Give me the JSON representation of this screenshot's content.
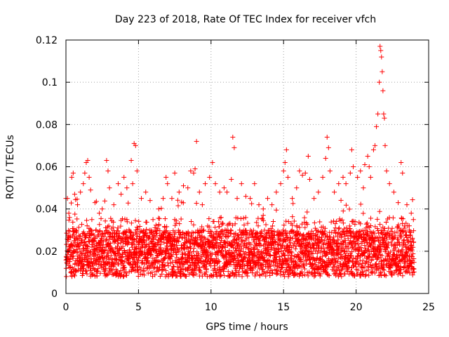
{
  "chart_data": {
    "type": "scatter",
    "title": "Day 223 of 2018, Rate Of TEC Index for receiver vfch",
    "xlabel": "GPS time / hours",
    "ylabel": "ROTI / TECUs",
    "xlim": [
      0,
      25
    ],
    "ylim": [
      0,
      0.12
    ],
    "xticks": [
      0,
      5,
      10,
      15,
      20,
      25
    ],
    "xtick_labels": [
      "0",
      "5",
      "10",
      "15",
      "20",
      "25"
    ],
    "yticks": [
      0,
      0.02,
      0.04,
      0.06,
      0.08,
      0.1,
      0.12
    ],
    "ytick_labels": [
      "0",
      "0.02",
      "0.04",
      "0.06",
      "0.08",
      "0.1",
      "0.12"
    ],
    "grid": true,
    "marker": "+",
    "color": "#ff0000",
    "series": [
      {
        "name": "ROTI",
        "points": [
          [
            0.0,
            0.045
          ],
          [
            0.1,
            0.045
          ],
          [
            0.2,
            0.038
          ],
          [
            0.4,
            0.055
          ],
          [
            0.5,
            0.057
          ],
          [
            0.6,
            0.047
          ],
          [
            0.8,
            0.042
          ],
          [
            1.0,
            0.048
          ],
          [
            1.2,
            0.052
          ],
          [
            1.3,
            0.057
          ],
          [
            1.4,
            0.062
          ],
          [
            1.5,
            0.063
          ],
          [
            1.6,
            0.055
          ],
          [
            1.7,
            0.049
          ],
          [
            2.0,
            0.043
          ],
          [
            2.3,
            0.038
          ],
          [
            2.5,
            0.04
          ],
          [
            2.8,
            0.063
          ],
          [
            2.9,
            0.058
          ],
          [
            3.0,
            0.05
          ],
          [
            3.3,
            0.042
          ],
          [
            3.6,
            0.052
          ],
          [
            3.8,
            0.047
          ],
          [
            4.0,
            0.055
          ],
          [
            4.2,
            0.05
          ],
          [
            4.5,
            0.063
          ],
          [
            4.6,
            0.052
          ],
          [
            4.7,
            0.071
          ],
          [
            4.8,
            0.07
          ],
          [
            4.9,
            0.058
          ],
          [
            5.2,
            0.045
          ],
          [
            5.5,
            0.048
          ],
          [
            5.8,
            0.044
          ],
          [
            6.0,
            0.035
          ],
          [
            6.4,
            0.04
          ],
          [
            6.7,
            0.045
          ],
          [
            6.9,
            0.055
          ],
          [
            7.0,
            0.052
          ],
          [
            7.3,
            0.045
          ],
          [
            7.5,
            0.057
          ],
          [
            7.8,
            0.048
          ],
          [
            8.1,
            0.051
          ],
          [
            8.4,
            0.05
          ],
          [
            8.6,
            0.058
          ],
          [
            8.8,
            0.057
          ],
          [
            8.9,
            0.059
          ],
          [
            9.0,
            0.072
          ],
          [
            9.2,
            0.048
          ],
          [
            9.4,
            0.042
          ],
          [
            9.6,
            0.052
          ],
          [
            9.9,
            0.055
          ],
          [
            10.1,
            0.062
          ],
          [
            10.3,
            0.052
          ],
          [
            10.6,
            0.048
          ],
          [
            10.9,
            0.05
          ],
          [
            11.1,
            0.048
          ],
          [
            11.4,
            0.054
          ],
          [
            11.5,
            0.074
          ],
          [
            11.6,
            0.069
          ],
          [
            11.8,
            0.045
          ],
          [
            12.1,
            0.052
          ],
          [
            12.4,
            0.046
          ],
          [
            12.7,
            0.045
          ],
          [
            13.0,
            0.052
          ],
          [
            13.3,
            0.042
          ],
          [
            13.6,
            0.04
          ],
          [
            13.9,
            0.045
          ],
          [
            14.2,
            0.042
          ],
          [
            14.5,
            0.048
          ],
          [
            14.8,
            0.052
          ],
          [
            15.0,
            0.058
          ],
          [
            15.1,
            0.062
          ],
          [
            15.2,
            0.068
          ],
          [
            15.3,
            0.055
          ],
          [
            15.6,
            0.045
          ],
          [
            15.9,
            0.05
          ],
          [
            16.1,
            0.058
          ],
          [
            16.3,
            0.056
          ],
          [
            16.5,
            0.057
          ],
          [
            16.7,
            0.065
          ],
          [
            16.8,
            0.054
          ],
          [
            17.1,
            0.045
          ],
          [
            17.4,
            0.048
          ],
          [
            17.7,
            0.055
          ],
          [
            17.9,
            0.064
          ],
          [
            18.0,
            0.074
          ],
          [
            18.1,
            0.069
          ],
          [
            18.2,
            0.058
          ],
          [
            18.5,
            0.048
          ],
          [
            18.8,
            0.052
          ],
          [
            19.1,
            0.055
          ],
          [
            19.3,
            0.052
          ],
          [
            19.6,
            0.057
          ],
          [
            19.7,
            0.068
          ],
          [
            19.8,
            0.06
          ],
          [
            20.1,
            0.055
          ],
          [
            20.3,
            0.058
          ],
          [
            20.5,
            0.05
          ],
          [
            20.6,
            0.061
          ],
          [
            20.8,
            0.065
          ],
          [
            20.9,
            0.06
          ],
          [
            21.0,
            0.055
          ],
          [
            21.2,
            0.068
          ],
          [
            21.3,
            0.07
          ],
          [
            21.4,
            0.079
          ],
          [
            21.5,
            0.085
          ],
          [
            21.6,
            0.1
          ],
          [
            21.65,
            0.117
          ],
          [
            21.7,
            0.115
          ],
          [
            21.75,
            0.112
          ],
          [
            21.8,
            0.105
          ],
          [
            21.85,
            0.096
          ],
          [
            21.9,
            0.085
          ],
          [
            21.95,
            0.083
          ],
          [
            22.0,
            0.07
          ],
          [
            22.1,
            0.058
          ],
          [
            22.3,
            0.052
          ],
          [
            22.6,
            0.048
          ],
          [
            22.9,
            0.043
          ],
          [
            23.1,
            0.062
          ],
          [
            23.2,
            0.057
          ],
          [
            23.5,
            0.042
          ],
          [
            23.8,
            0.038
          ],
          [
            23.95,
            0.035
          ]
        ]
      }
    ]
  }
}
